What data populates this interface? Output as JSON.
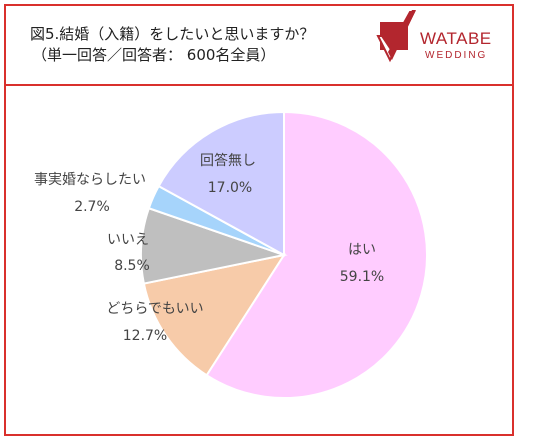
{
  "header": {
    "title": "図5.結婚（入籍）をしたいと思いますか？",
    "subtitle": "（単一回答／回答者： 600名全員）"
  },
  "logo": {
    "brand": "WATABE",
    "sub": "WEDDING"
  },
  "chart_data": {
    "type": "pie",
    "title": "図5.結婚（入籍）をしたいと思いますか？",
    "slices": [
      {
        "name": "はい",
        "value": 59.1,
        "label": "59.1%",
        "color": "#ffccff"
      },
      {
        "name": "どちらでもいい",
        "value": 12.7,
        "label": "12.7%",
        "color": "#f7cba9"
      },
      {
        "name": "いいえ",
        "value": 8.5,
        "label": "8.5%",
        "color": "#bfbfbf"
      },
      {
        "name": "事実婚ならしたい",
        "value": 2.7,
        "label": "2.7%",
        "color": "#a6d4fb"
      },
      {
        "name": "回答無し",
        "value": 17.0,
        "label": "17.0%",
        "color": "#ccccff"
      }
    ],
    "start": "12 o'clock",
    "direction": "clockwise"
  }
}
